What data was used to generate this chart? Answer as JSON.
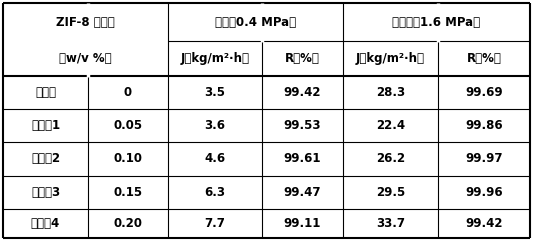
{
  "rows": [
    [
      "对比例",
      "0",
      "3.5",
      "99.42",
      "28.3",
      "99.69"
    ],
    [
      "实施例1",
      "0.05",
      "3.6",
      "99.53",
      "22.4",
      "99.86"
    ],
    [
      "实施例2",
      "0.10",
      "4.6",
      "99.61",
      "26.2",
      "99.97"
    ],
    [
      "实施例3",
      "0.15",
      "6.3",
      "99.47",
      "29.5",
      "99.96"
    ],
    [
      "实施例4",
      "0.20",
      "7.7",
      "99.11",
      "33.7",
      "99.42"
    ]
  ],
  "header_row0_col01": "ZIF-8 添加量",
  "header_row1_col01": "（w/v %）",
  "header_nanfilt": "纳滤（0.4 MPa）",
  "header_reverse": "反渗透（1.6 MPa）",
  "header_J": "J（kg/m²·h）",
  "header_R": "R（%）",
  "bg_color": "#ffffff",
  "line_color": "#000000",
  "lw_outer": 1.5,
  "lw_inner": 0.8,
  "lw_thick": 1.5,
  "font_size": 8.5
}
